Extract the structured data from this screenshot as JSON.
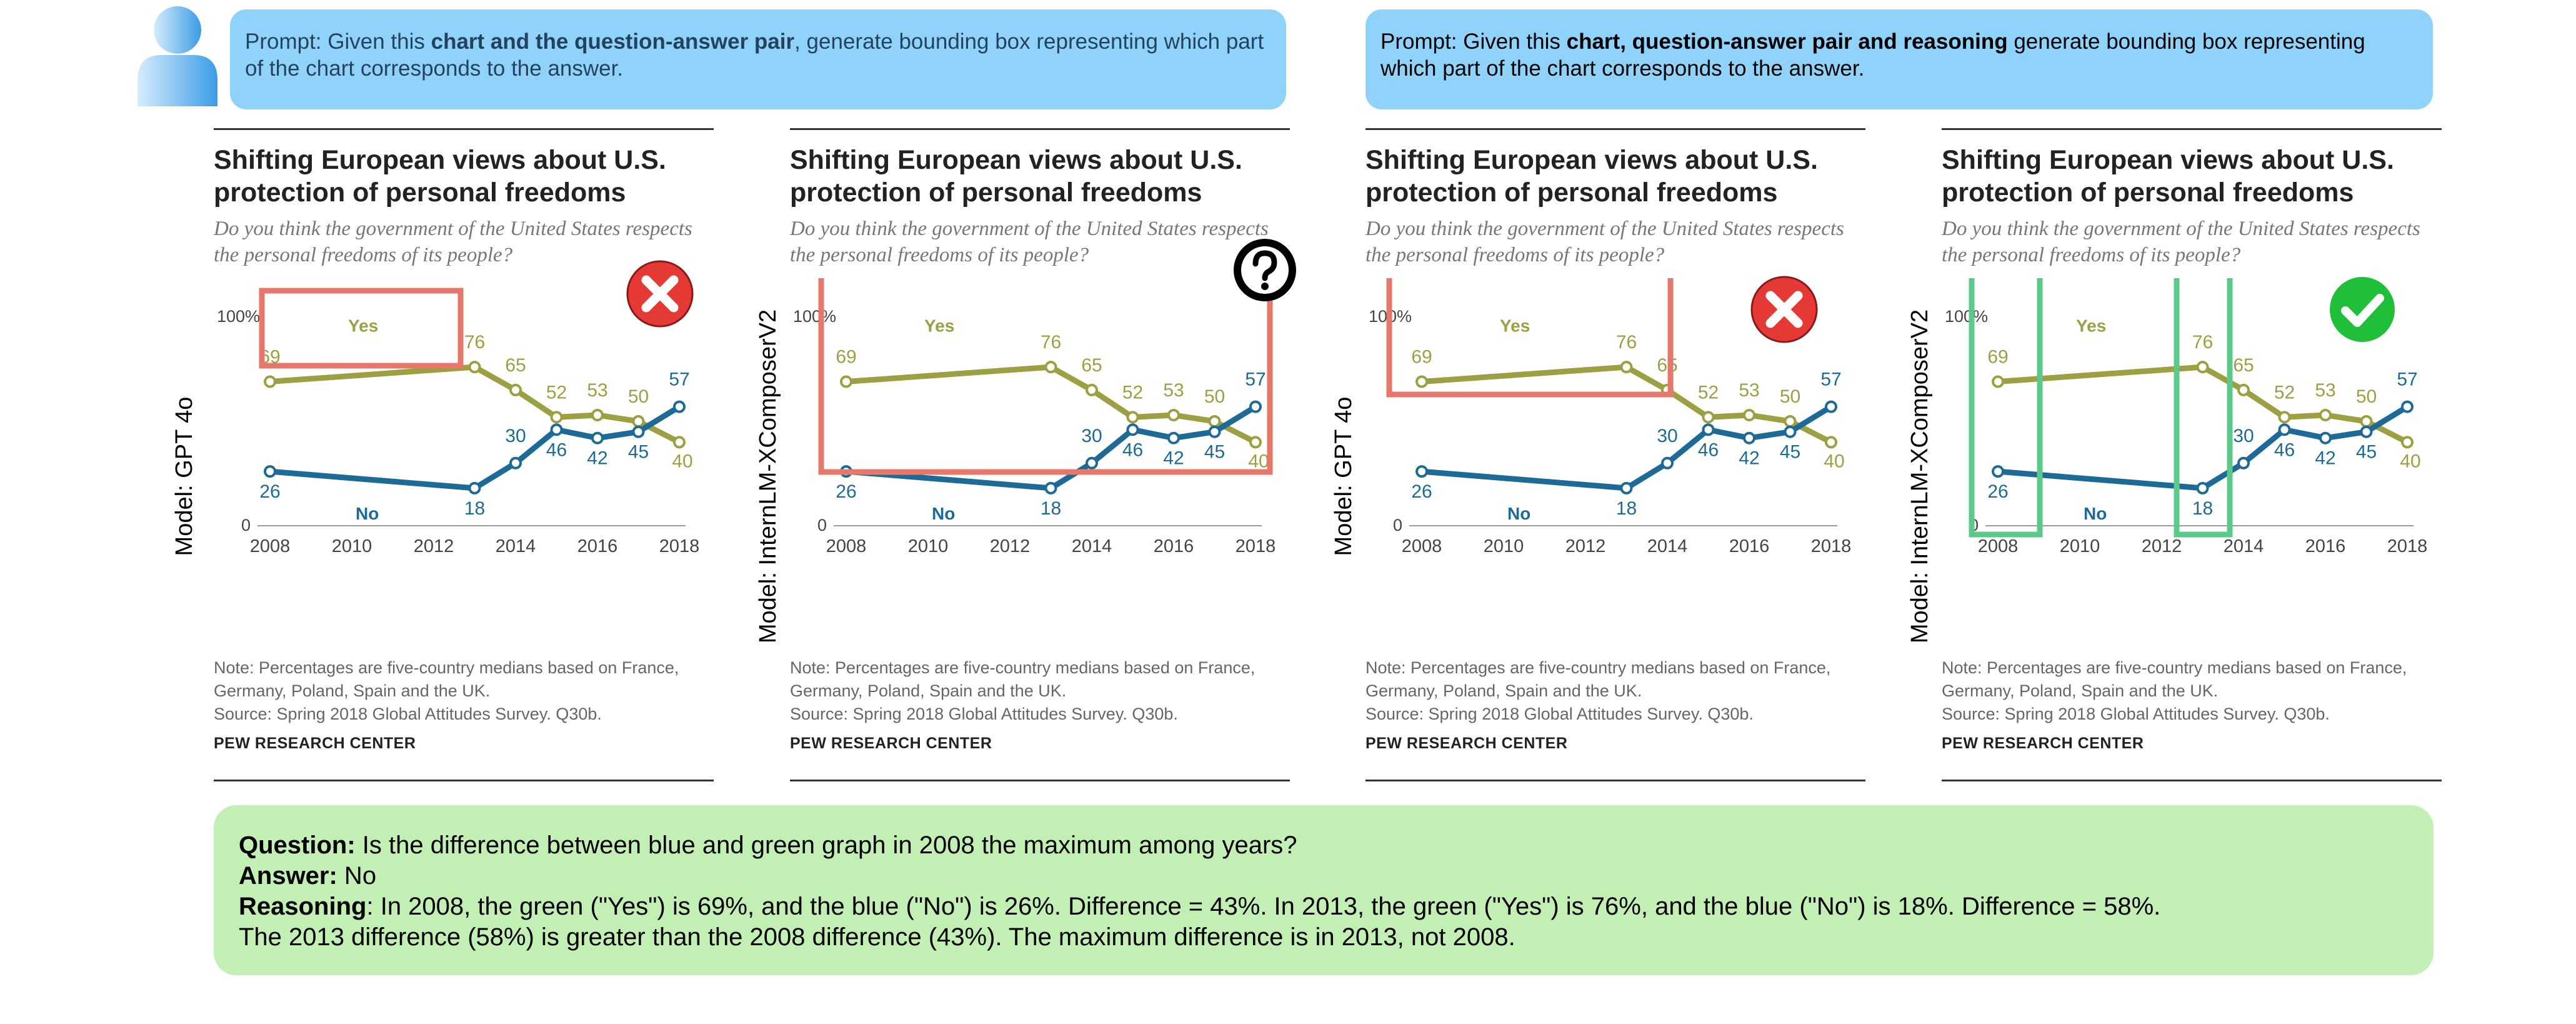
{
  "prompts": {
    "left": {
      "prefix": "Prompt: Given this ",
      "bold": "chart and the question-answer pair",
      "suffix": ", generate bounding box representing which part of the chart corresponds to the answer."
    },
    "right": {
      "prefix": "Prompt: Given this ",
      "bold": "chart, question-answer pair and reasoning",
      "suffix": " generate bounding box representing which part of the chart corresponds to the answer."
    }
  },
  "chart_card": {
    "title": "Shifting European views about U.S. protection of personal freedoms",
    "subtitle": "Do you think the government of the United States respects the personal freedoms of its people?",
    "note_line1": "Note: Percentages are five-country medians based on France,",
    "note_line2": "Germany, Poland, Spain and the UK.",
    "source": "Source: Spring 2018 Global Attitudes Survey. Q30b.",
    "brand": "PEW RESEARCH CENTER"
  },
  "panels": [
    {
      "model_label": "Model: GPT 4o",
      "verdict": "wrong",
      "box_color": "#e8776b"
    },
    {
      "model_label": "Model: InternLM-XComposerV2",
      "verdict": "unknown",
      "box_color": "#e8776b"
    },
    {
      "model_label": "Model: GPT 4o",
      "verdict": "wrong",
      "box_color": "#e8776b"
    },
    {
      "model_label": "Model: InternLM-XComposerV2",
      "verdict": "correct",
      "box_color": "#5cc98a"
    }
  ],
  "chart_data": {
    "type": "line",
    "title": "Shifting European views about U.S. protection of personal freedoms",
    "subtitle": "Do you think the government of the United States respects the personal freedoms of its people?",
    "x": [
      2008,
      2013,
      2014,
      2015,
      2016,
      2017,
      2018
    ],
    "series": [
      {
        "name": "Yes",
        "color": "#9c9f42",
        "values": [
          69,
          76,
          65,
          52,
          53,
          50,
          40
        ]
      },
      {
        "name": "No",
        "color": "#1d6a97",
        "values": [
          26,
          18,
          30,
          46,
          42,
          45,
          57
        ]
      }
    ],
    "xticks": [
      "2008",
      "2010",
      "2012",
      "2014",
      "2016",
      "2018"
    ],
    "ylim": [
      0,
      100
    ],
    "ytick_top": "100%",
    "ytick_bottom": "0",
    "xlim": [
      2008,
      2018
    ]
  },
  "qa": {
    "question_label": "Question:",
    "question": " Is the difference between blue and green graph in 2008 the maximum among years?",
    "answer_label": "Answer:",
    "answer": " No",
    "reasoning_label": "Reasoning",
    "reasoning_line1": ": In 2008, the green (\"Yes\") is 69%, and the blue (\"No\") is 26%. Difference = 43%. In 2013, the green (\"Yes\") is 76%, and the blue (\"No\") is 18%. Difference = 58%.",
    "reasoning_line2": "The 2013 difference (58%) is greater than the 2008 difference (43%). The maximum difference is in 2013, not 2008."
  },
  "colors": {
    "prompt_bg": "#8fd3fb",
    "qa_bg": "#c2efb4",
    "wrong": "#e53935",
    "correct": "#1fbf3a"
  }
}
